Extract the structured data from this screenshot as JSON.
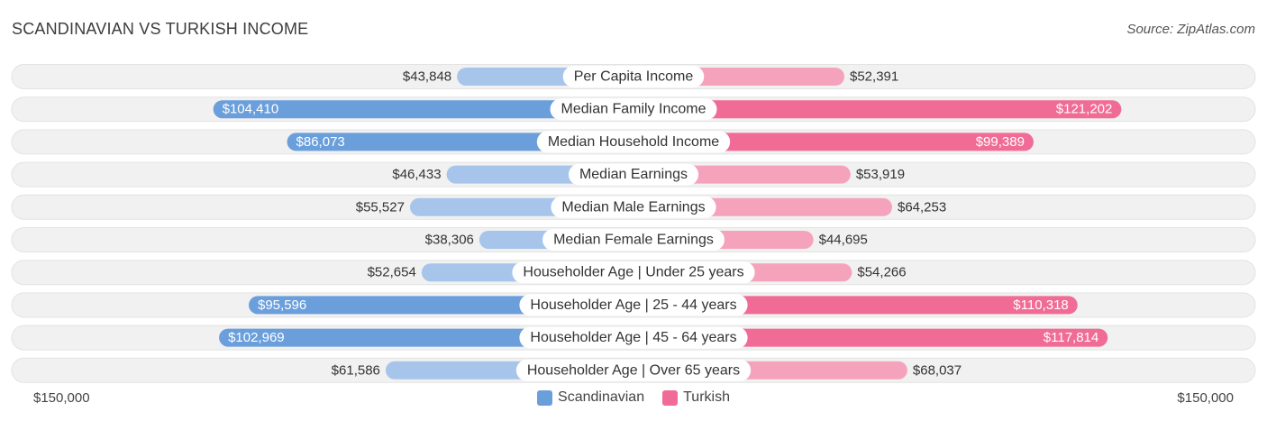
{
  "header": {
    "title": "SCANDINAVIAN VS TURKISH INCOME",
    "source": "Source: ZipAtlas.com"
  },
  "axis": {
    "left_label": "$150,000",
    "right_label": "$150,000"
  },
  "legend": {
    "items": [
      {
        "label": "Scandinavian",
        "color": "#6a9fdc"
      },
      {
        "label": "Turkish",
        "color": "#f06c96"
      }
    ]
  },
  "colors": {
    "scandinavian_strong": "#6a9fdc",
    "scandinavian_light": "#a7c5ea",
    "turkish_strong": "#f06c96",
    "turkish_light": "#f5a3bd",
    "track": "#f1f1f1"
  },
  "chart_data": {
    "type": "bar",
    "orientation": "horizontal-diverging",
    "title": "SCANDINAVIAN VS TURKISH INCOME",
    "xlim": [
      0,
      150000
    ],
    "categories": [
      "Per Capita Income",
      "Median Family Income",
      "Median Household Income",
      "Median Earnings",
      "Median Male Earnings",
      "Median Female Earnings",
      "Householder Age | Under 25 years",
      "Householder Age | 25 - 44 years",
      "Householder Age | 45 - 64 years",
      "Householder Age | Over 65 years"
    ],
    "series": [
      {
        "name": "Scandinavian",
        "values": [
          43848,
          104410,
          86073,
          46433,
          55527,
          38306,
          52654,
          95596,
          102969,
          61586
        ],
        "labels": [
          "$43,848",
          "$104,410",
          "$86,073",
          "$46,433",
          "$55,527",
          "$38,306",
          "$52,654",
          "$95,596",
          "$102,969",
          "$61,586"
        ]
      },
      {
        "name": "Turkish",
        "values": [
          52391,
          121202,
          99389,
          53919,
          64253,
          44695,
          54266,
          110318,
          117814,
          68037
        ],
        "labels": [
          "$52,391",
          "$121,202",
          "$99,389",
          "$53,919",
          "$64,253",
          "$44,695",
          "$54,266",
          "$110,318",
          "$117,814",
          "$68,037"
        ]
      }
    ],
    "legend": "bottom-center"
  }
}
